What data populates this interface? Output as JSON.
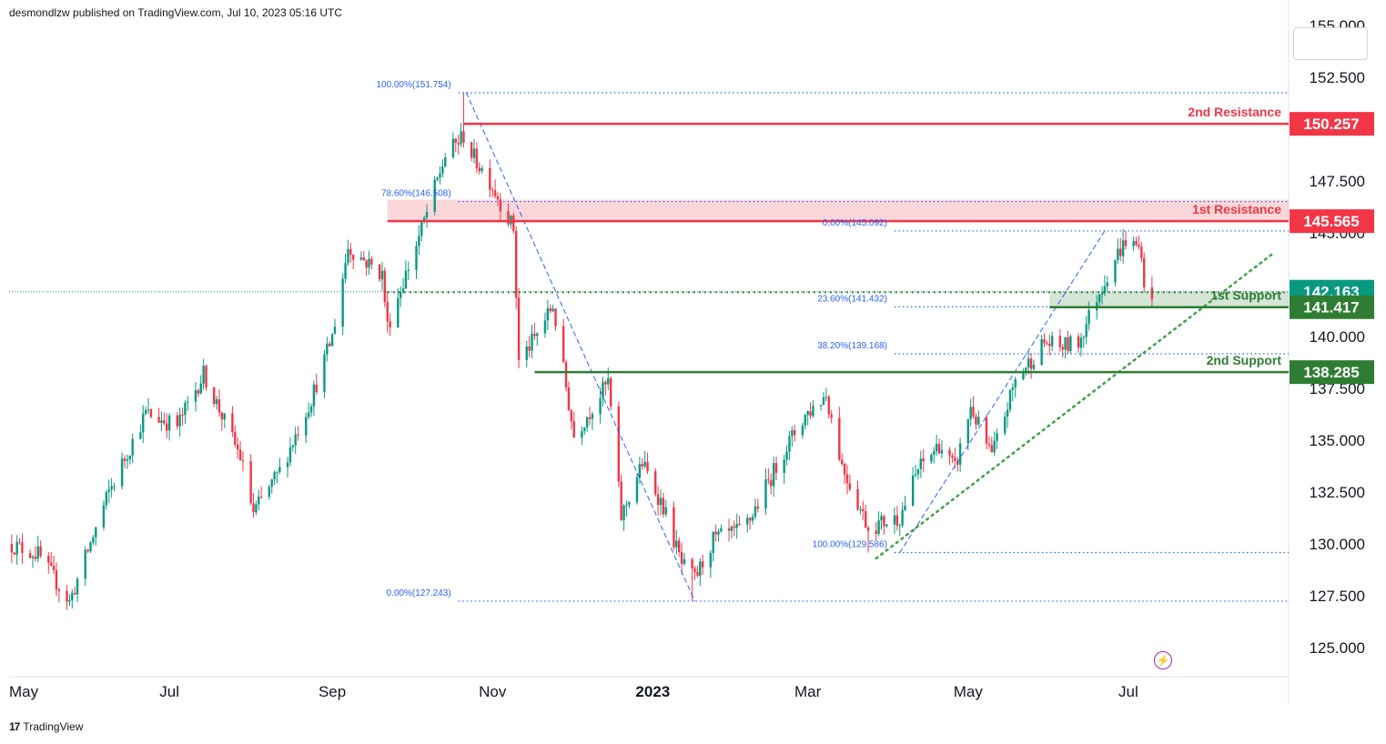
{
  "publisher_line": "desmondlzw published on TradingView.com, Jul 10, 2023 05:16 UTC",
  "brand": {
    "logo": "17",
    "name": "TradingView"
  },
  "colors": {
    "up": "#089981",
    "down": "#f23645",
    "fib": "#2962ff",
    "resistance": "#f23645",
    "support": "#2e7d32",
    "axis_text": "#131722"
  },
  "icons": [
    "lightning-icon",
    "tradingview-logo-icon"
  ],
  "chart_data": {
    "type": "candlestick",
    "title": "",
    "y_axis": {
      "side": "right",
      "range": [
        123.6,
        155.0
      ],
      "ticks": [
        "152.500",
        "147.500",
        "140.000",
        "135.000",
        "132.500",
        "130.000",
        "127.500",
        "125.000"
      ],
      "partially_hidden_ticks": [
        "155.000",
        "145.000",
        "137.500"
      ]
    },
    "x_axis": {
      "range": [
        "2022-05-01",
        "2023-08-31"
      ],
      "labels": [
        {
          "label": "May",
          "date": "2022-05-01"
        },
        {
          "label": "Jul",
          "date": "2022-07-01"
        },
        {
          "label": "Sep",
          "date": "2022-09-01"
        },
        {
          "label": "Nov",
          "date": "2022-11-01"
        },
        {
          "label": "2023",
          "date": "2023-01-01",
          "bold": true
        },
        {
          "label": "Mar",
          "date": "2023-03-01"
        },
        {
          "label": "May",
          "date": "2023-05-01"
        },
        {
          "label": "Jul",
          "date": "2023-07-01"
        }
      ]
    },
    "path_keypoints": [
      {
        "date": "2022-05-01",
        "close": 130.0
      },
      {
        "date": "2022-05-12",
        "close": 129.5
      },
      {
        "date": "2022-05-24",
        "close": 127.2
      },
      {
        "date": "2022-06-08",
        "close": 132.5
      },
      {
        "date": "2022-06-22",
        "close": 136.3
      },
      {
        "date": "2022-07-04",
        "close": 135.7
      },
      {
        "date": "2022-07-14",
        "close": 138.2
      },
      {
        "date": "2022-07-28",
        "close": 134.2
      },
      {
        "date": "2022-08-02",
        "close": 131.5
      },
      {
        "date": "2022-08-12",
        "close": 133.5
      },
      {
        "date": "2022-08-24",
        "close": 137.0
      },
      {
        "date": "2022-09-01",
        "close": 140.0
      },
      {
        "date": "2022-09-07",
        "close": 144.3
      },
      {
        "date": "2022-09-20",
        "close": 143.0
      },
      {
        "date": "2022-09-22",
        "close": 140.5
      },
      {
        "date": "2022-10-04",
        "close": 144.8
      },
      {
        "date": "2022-10-14",
        "close": 148.7
      },
      {
        "date": "2022-10-21",
        "close": 149.7
      },
      {
        "date": "2022-10-24",
        "close": 148.8
      },
      {
        "date": "2022-10-31",
        "close": 147.5
      },
      {
        "date": "2022-11-09",
        "close": 145.2
      },
      {
        "date": "2022-11-11",
        "close": 138.8
      },
      {
        "date": "2022-11-17",
        "close": 139.9
      },
      {
        "date": "2022-11-24",
        "close": 141.5
      },
      {
        "date": "2022-12-02",
        "close": 135.2
      },
      {
        "date": "2022-12-09",
        "close": 136.6
      },
      {
        "date": "2022-12-15",
        "close": 137.8
      },
      {
        "date": "2022-12-20",
        "close": 131.3
      },
      {
        "date": "2022-12-28",
        "close": 133.9
      },
      {
        "date": "2023-01-05",
        "close": 131.8
      },
      {
        "date": "2023-01-12",
        "close": 129.0
      },
      {
        "date": "2023-01-17",
        "close": 128.3
      },
      {
        "date": "2023-01-24",
        "close": 130.2
      },
      {
        "date": "2023-02-03",
        "close": 130.6
      },
      {
        "date": "2023-02-07",
        "close": 131.2
      },
      {
        "date": "2023-02-20",
        "close": 134.5
      },
      {
        "date": "2023-02-28",
        "close": 136.2
      },
      {
        "date": "2023-03-08",
        "close": 137.2
      },
      {
        "date": "2023-03-14",
        "close": 133.8
      },
      {
        "date": "2023-03-24",
        "close": 130.8
      },
      {
        "date": "2023-04-05",
        "close": 131.3
      },
      {
        "date": "2023-04-12",
        "close": 133.6
      },
      {
        "date": "2023-04-20",
        "close": 134.8
      },
      {
        "date": "2023-04-26",
        "close": 133.6
      },
      {
        "date": "2023-05-02",
        "close": 136.6
      },
      {
        "date": "2023-05-10",
        "close": 134.2
      },
      {
        "date": "2023-05-19",
        "close": 137.9
      },
      {
        "date": "2023-05-30",
        "close": 139.7
      },
      {
        "date": "2023-06-05",
        "close": 139.5
      },
      {
        "date": "2023-06-12",
        "close": 139.7
      },
      {
        "date": "2023-06-19",
        "close": 141.9
      },
      {
        "date": "2023-06-26",
        "close": 143.8
      },
      {
        "date": "2023-06-30",
        "close": 144.6
      },
      {
        "date": "2023-07-06",
        "close": 144.2
      },
      {
        "date": "2023-07-07",
        "close": 142.1
      },
      {
        "date": "2023-07-10",
        "close": 142.163
      }
    ],
    "series_extremes": [
      {
        "date": "2022-10-21",
        "low_or_high": "high",
        "value": 151.754
      },
      {
        "date": "2023-01-16",
        "low_or_high": "low",
        "value": 127.243
      },
      {
        "date": "2023-03-24",
        "low_or_high": "low",
        "value": 129.586
      },
      {
        "date": "2023-06-30",
        "low_or_high": "high",
        "value": 145.092
      }
    ],
    "current_price": {
      "value": "142.163",
      "numeric": 142.163
    },
    "levels": [
      {
        "name": "2nd Resistance",
        "value": "150.257",
        "numeric": 150.257,
        "kind": "resistance",
        "from": "2022-10-21"
      },
      {
        "name": "1st Resistance",
        "value": "145.565",
        "numeric": 145.565,
        "kind": "resistance",
        "from": "2022-09-22",
        "zone": [
          145.565,
          146.6
        ]
      },
      {
        "name": "1st Support",
        "value": "141.417",
        "numeric": 141.417,
        "kind": "support",
        "from": "2023-06-01",
        "zone": [
          141.417,
          142.163
        ]
      },
      {
        "name": "2nd Support",
        "value": "138.285",
        "numeric": 138.285,
        "kind": "support",
        "from": "2022-11-17"
      }
    ],
    "fib_labels": [
      {
        "text": "100.00%(151.754)",
        "value": 151.754,
        "line_from": "2022-10-19",
        "line_to": "2023-08-31"
      },
      {
        "text": "78.60%(146.508)",
        "value": 146.508,
        "line_from": "2022-10-19",
        "line_to": "2023-08-31"
      },
      {
        "text": "0.00%(145.092)",
        "value": 145.092,
        "line_from": "2023-04-03",
        "line_to": "2023-08-31"
      },
      {
        "text": "23.60%(141.432)",
        "value": 141.432,
        "line_from": "2023-04-03",
        "line_to": "2023-08-31"
      },
      {
        "text": "38.20%(139.168)",
        "value": 139.168,
        "line_from": "2023-04-03",
        "line_to": "2023-08-31"
      },
      {
        "text": "100.00%(129.586)",
        "value": 129.586,
        "line_from": "2023-04-03",
        "line_to": "2023-08-31"
      },
      {
        "text": "0.00%(127.243)",
        "value": 127.243,
        "line_from": "2022-10-19",
        "line_to": "2023-08-31"
      }
    ],
    "dotted_level": {
      "value": 141.43,
      "from": "2022-09-22",
      "to": "2023-08-31"
    },
    "trend_lines": [
      {
        "name": "fib-retracement-diagonal-1",
        "from": {
          "date": "2022-10-22",
          "value": 151.754
        },
        "to": {
          "date": "2023-01-17",
          "value": 127.243
        }
      },
      {
        "name": "fib-retracement-diagonal-2",
        "from": {
          "date": "2023-04-05",
          "value": 129.586
        },
        "to": {
          "date": "2023-06-22",
          "value": 145.092
        }
      },
      {
        "name": "rising-support-trendline",
        "from": {
          "date": "2023-03-27",
          "value": 129.3
        },
        "to": {
          "date": "2023-08-25",
          "value": 144.0
        }
      }
    ]
  }
}
